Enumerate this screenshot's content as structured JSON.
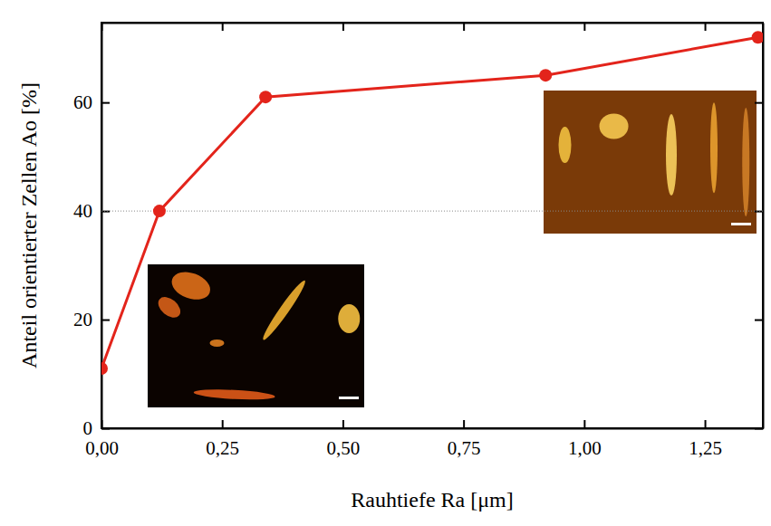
{
  "chart_data": {
    "type": "line",
    "x_label": "Rauhtiefe Ra [μm]",
    "y_label": "Anteil orientierter Zellen Ao [%]",
    "x": [
      0.0,
      0.12,
      0.34,
      0.92,
      1.36
    ],
    "values": [
      11,
      40,
      61,
      65,
      72
    ],
    "color": "#e3241b",
    "marker": "circle",
    "line_style": "solid",
    "xlim": [
      0,
      1.37
    ],
    "xticks": [
      {
        "value": 0,
        "label": "0,00"
      },
      {
        "value": 0.25,
        "label": "0,25"
      },
      {
        "value": 0.5,
        "label": "0,50"
      },
      {
        "value": 0.75,
        "label": "0,75"
      },
      {
        "value": 1.0,
        "label": "1,00"
      },
      {
        "value": 1.25,
        "label": "1,25"
      }
    ],
    "ylim": [
      0,
      74.7
    ],
    "yticks": [
      0,
      20,
      40,
      60
    ],
    "hline": 40,
    "grid": false
  }
}
